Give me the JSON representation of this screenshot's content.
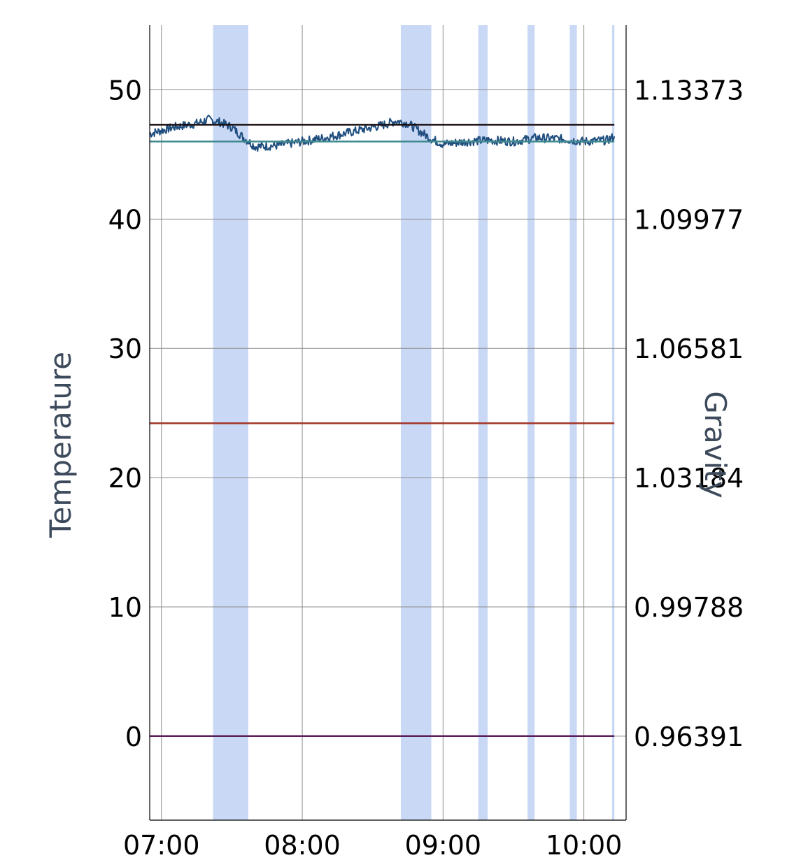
{
  "chart_data": {
    "type": "line",
    "title": "",
    "xlabel": "",
    "ylabel_left": "Temperature",
    "ylabel_right": "Gravity",
    "x_unit": "time (HH:MM)",
    "x_range": [
      "06:55",
      "10:18"
    ],
    "x_ticks": [
      "07:00",
      "08:00",
      "09:00",
      "10:00"
    ],
    "ylim_left": [
      -6.5,
      55
    ],
    "y_ticks_left": [
      "0",
      "10",
      "20",
      "30",
      "40",
      "50"
    ],
    "y_ticks_left_values": [
      0,
      10,
      20,
      30,
      40,
      50
    ],
    "y_ticks_right": [
      "0.96391",
      "0.99788",
      "1.03184",
      "1.06581",
      "1.09977",
      "1.13373"
    ],
    "grid": true,
    "legend": "none",
    "shaded_regions": [
      {
        "start": "07:22",
        "end": "07:37"
      },
      {
        "start": "08:42",
        "end": "08:55"
      },
      {
        "start": "09:15",
        "end": "09:19"
      },
      {
        "start": "09:36",
        "end": "09:39"
      },
      {
        "start": "09:54",
        "end": "09:57"
      },
      {
        "start": "10:12",
        "end": "10:13"
      }
    ],
    "series": [
      {
        "color": "#1f4e7f",
        "axis": "left",
        "style": "noisy",
        "x": [
          "06:55",
          "07:05",
          "07:15",
          "07:20",
          "07:25",
          "07:30",
          "07:35",
          "07:40",
          "07:50",
          "08:00",
          "08:10",
          "08:20",
          "08:30",
          "08:35",
          "08:40",
          "08:45",
          "08:50",
          "08:55",
          "09:00",
          "09:10",
          "09:20",
          "09:30",
          "09:40",
          "09:50",
          "10:00",
          "10:10",
          "10:13"
        ],
        "y": [
          46.6,
          47.1,
          47.4,
          47.7,
          47.5,
          47.1,
          46.3,
          45.6,
          45.7,
          46.0,
          46.3,
          46.7,
          47.1,
          47.3,
          47.6,
          47.4,
          46.8,
          46.2,
          45.8,
          46.0,
          46.1,
          46.0,
          46.3,
          46.2,
          46.0,
          46.1,
          46.4
        ]
      },
      {
        "color": "#1a0f10",
        "axis": "left",
        "x": [
          "06:55",
          "10:13"
        ],
        "y": [
          47.3,
          47.3
        ]
      },
      {
        "color": "#3e8a8e",
        "axis": "left",
        "x": [
          "06:55",
          "10:13"
        ],
        "y": [
          46.0,
          46.0
        ]
      },
      {
        "color": "#a33325",
        "axis": "left",
        "x": [
          "06:55",
          "10:13"
        ],
        "y": [
          24.2,
          24.2
        ]
      },
      {
        "color": "#5a1f5a",
        "axis": "left",
        "x": [
          "06:55",
          "10:13"
        ],
        "y": [
          0.0,
          0.0
        ]
      }
    ],
    "colors": {
      "shade": "#c9d8f5",
      "grid": "#8c8c8c",
      "axis": "#000000"
    }
  }
}
